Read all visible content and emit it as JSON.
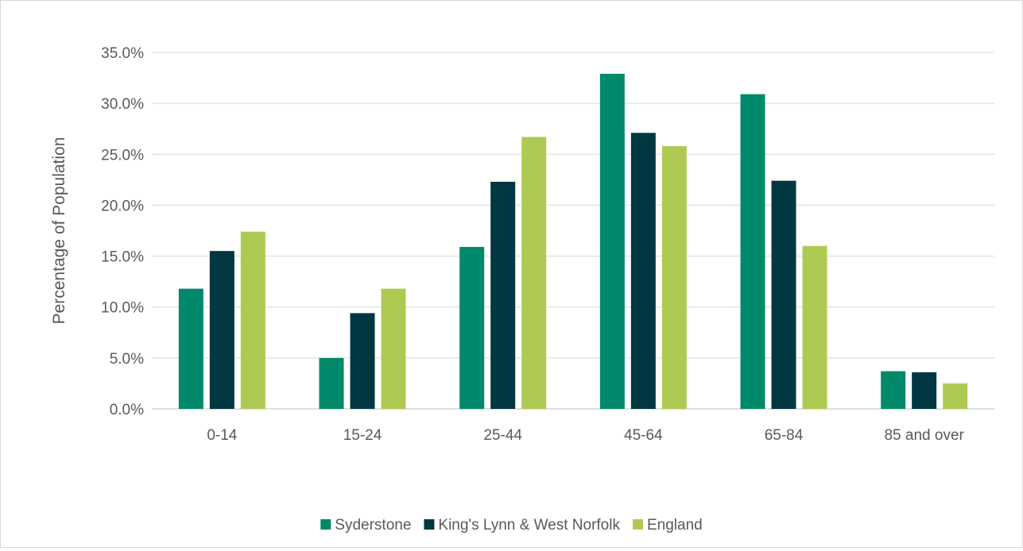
{
  "chart_data": {
    "type": "bar",
    "title": "",
    "xlabel": "",
    "ylabel": "Percentage of Population",
    "categories": [
      "0-14",
      "15-24",
      "25-44",
      "45-64",
      "65-84",
      "85 and over"
    ],
    "ylim": [
      0,
      35
    ],
    "y_ticks": [
      "0.0%",
      "5.0%",
      "10.0%",
      "15.0%",
      "20.0%",
      "25.0%",
      "30.0%",
      "35.0%"
    ],
    "grid": true,
    "legend_position": "bottom",
    "series": [
      {
        "name": "Syderstone",
        "color": "#00896a",
        "values": [
          11.8,
          5.0,
          15.9,
          32.9,
          30.9,
          3.7
        ]
      },
      {
        "name": "King's Lynn & West Norfolk",
        "color": "#003741",
        "values": [
          15.5,
          9.4,
          22.3,
          27.1,
          22.4,
          3.6
        ]
      },
      {
        "name": "England",
        "color": "#afca53",
        "values": [
          17.4,
          11.8,
          26.7,
          25.8,
          16.0,
          2.5
        ]
      }
    ]
  }
}
